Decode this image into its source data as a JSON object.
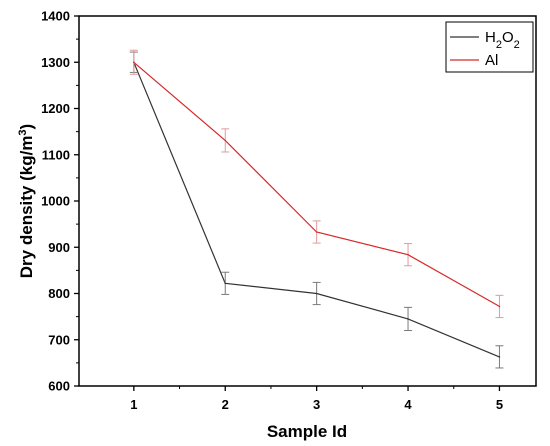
{
  "chart_data": {
    "type": "line",
    "x": [
      1,
      2,
      3,
      4,
      5
    ],
    "xticks": [
      "1",
      "2",
      "3",
      "4",
      "5"
    ],
    "yticks": [
      "600",
      "700",
      "800",
      "900",
      "1000",
      "1100",
      "1200",
      "1300",
      "1400"
    ],
    "xlim": [
      0.4,
      5.4
    ],
    "ylim": [
      600,
      1400
    ],
    "xlabel": "Sample Id",
    "ylabel": "Dry density (kg/m³)",
    "ylabel_parts": {
      "main": "Dry density (kg/m",
      "sup": "3",
      "end": ")"
    },
    "grid": false,
    "legend_position": "top-right",
    "series": [
      {
        "name": "H2O2",
        "name_parts": {
          "a": "H",
          "sub1": "2",
          "b": "O",
          "sub2": "2"
        },
        "color": "#333333",
        "values": [
          1300,
          822,
          800,
          745,
          663
        ],
        "errors": [
          22,
          24,
          24,
          25,
          24
        ]
      },
      {
        "name": "Al",
        "color": "#d62a2a",
        "values": [
          1300,
          1131,
          933,
          884,
          772
        ],
        "errors": [
          26,
          25,
          24,
          24,
          24
        ]
      }
    ]
  }
}
